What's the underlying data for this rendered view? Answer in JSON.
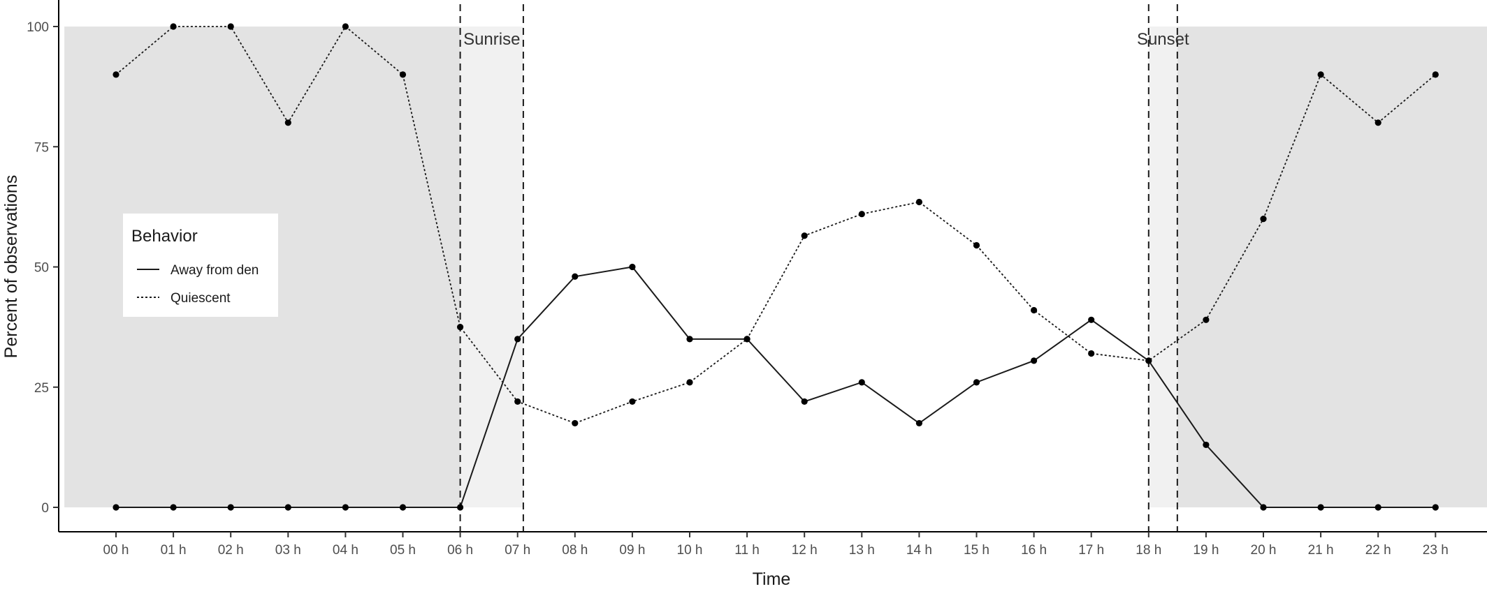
{
  "chart_data": {
    "type": "line",
    "xlabel": "Time",
    "ylabel": "Percent of  observations",
    "categories": [
      "00 h",
      "01 h",
      "02 h",
      "03 h",
      "04 h",
      "05 h",
      "06 h",
      "07 h",
      "08 h",
      "09 h",
      "10 h",
      "11 h",
      "12 h",
      "13 h",
      "14 h",
      "15 h",
      "16 h",
      "17 h",
      "18 h",
      "19 h",
      "20 h",
      "21 h",
      "22 h",
      "23 h"
    ],
    "ylim": [
      0,
      100
    ],
    "yticks": [
      0,
      25,
      50,
      75,
      100
    ],
    "grid": false,
    "legend": {
      "title": "Behavior",
      "placement": "left",
      "entries": [
        {
          "label": "Away from den",
          "linestyle": "solid"
        },
        {
          "label": "Quiescent",
          "linestyle": "dotted"
        }
      ]
    },
    "series": [
      {
        "name": "Away from den",
        "linestyle": "solid",
        "values": [
          0,
          0,
          0,
          0,
          0,
          0,
          0,
          35,
          48,
          50,
          35,
          35,
          22,
          26,
          17.5,
          26,
          30.5,
          39,
          30.5,
          13,
          0,
          0,
          0,
          0
        ]
      },
      {
        "name": "Quiescent",
        "linestyle": "dotted",
        "values": [
          90,
          100,
          100,
          80,
          100,
          90,
          37.5,
          22,
          17.5,
          22,
          26,
          35,
          56.5,
          61,
          63.5,
          54.5,
          41,
          32,
          30.5,
          39,
          60,
          90,
          80,
          90
        ]
      }
    ],
    "annotations": [
      {
        "text": "Sunrise",
        "x_start": 6.0,
        "x_end": 7.1
      },
      {
        "text": "Sunset",
        "x_start": 18.0,
        "x_end": 18.5
      }
    ],
    "shaded_regions": [
      {
        "x_start": -0.9,
        "x_end": 6.0,
        "y_start": 0,
        "y_end": 100,
        "color": "#e3e3e3"
      },
      {
        "x_start": 6.0,
        "x_end": 7.1,
        "y_start": 0,
        "y_end": 100,
        "color": "#f1f1f1"
      },
      {
        "x_start": 18.0,
        "x_end": 18.5,
        "y_start": 0,
        "y_end": 100,
        "color": "#f1f1f1"
      },
      {
        "x_start": 18.5,
        "x_end": 24.0,
        "y_start": 0,
        "y_end": 100,
        "color": "#e3e3e3"
      }
    ],
    "colors": {
      "line": "#1a1a1a",
      "point": "#000000",
      "axis": "#000000"
    }
  }
}
